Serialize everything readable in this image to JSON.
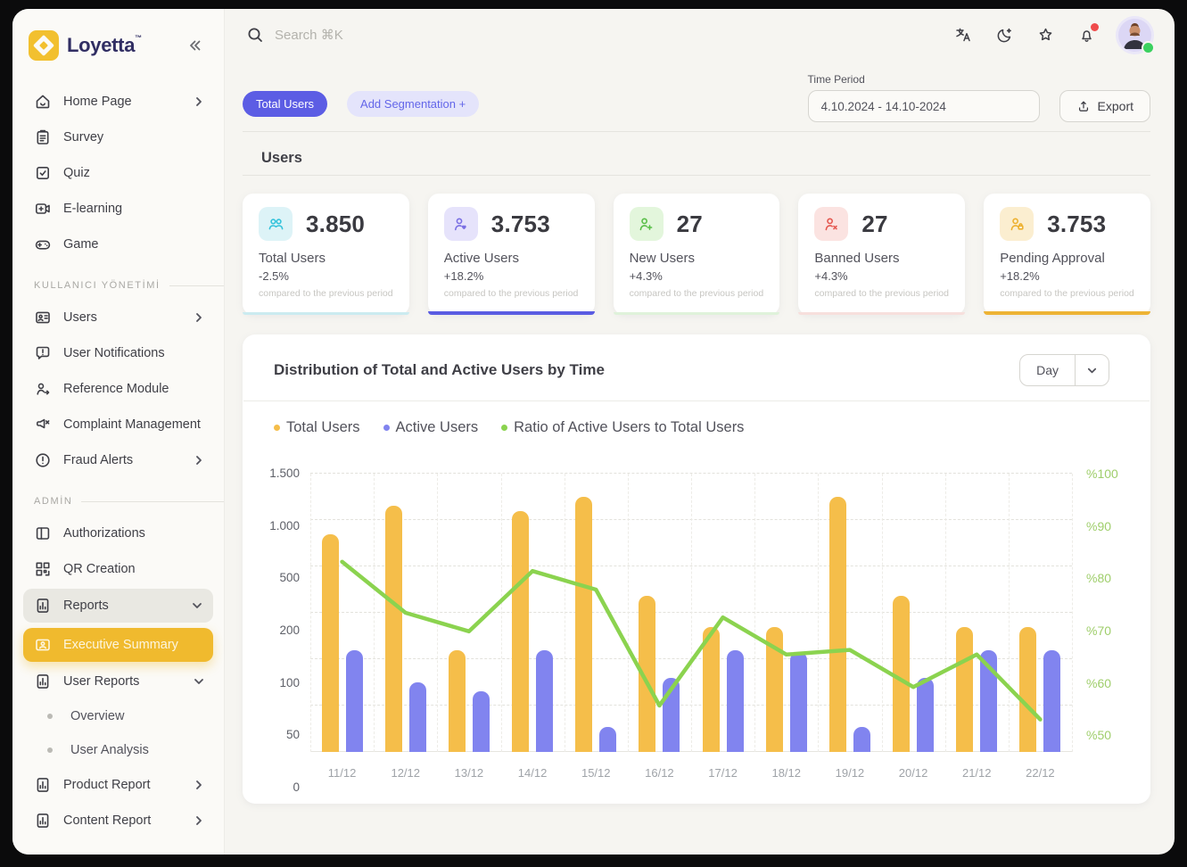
{
  "brand": {
    "name": "Loyetta",
    "tm": "™"
  },
  "sidebar": {
    "sections": [
      {
        "label": null,
        "items": [
          {
            "icon": "home-icon",
            "label": "Home Page",
            "chevron": "right"
          },
          {
            "icon": "survey-icon",
            "label": "Survey"
          },
          {
            "icon": "quiz-icon",
            "label": "Quiz"
          },
          {
            "icon": "elearning-icon",
            "label": "E-learning"
          },
          {
            "icon": "game-icon",
            "label": "Game"
          }
        ]
      },
      {
        "label": "KULLANICI YÖNETİMİ",
        "items": [
          {
            "icon": "users-icon",
            "label": "Users",
            "chevron": "right"
          },
          {
            "icon": "user-notifications-icon",
            "label": "User Notifications"
          },
          {
            "icon": "reference-module-icon",
            "label": "Reference Module"
          },
          {
            "icon": "complaint-icon",
            "label": "Complaint Management"
          },
          {
            "icon": "fraud-alerts-icon",
            "label": "Fraud Alerts",
            "chevron": "right"
          }
        ]
      },
      {
        "label": "ADMİN",
        "items": [
          {
            "icon": "authorizations-icon",
            "label": "Authorizations"
          },
          {
            "icon": "qr-icon",
            "label": "QR Creation"
          },
          {
            "icon": "report-icon",
            "label": "Reports",
            "chevron": "down",
            "state": "group"
          },
          {
            "icon": "executive-summary-icon",
            "label": "Executive Summary",
            "state": "active"
          },
          {
            "icon": "report-icon",
            "label": "User Reports",
            "chevron": "down"
          },
          {
            "label": "Overview",
            "sub": true
          },
          {
            "label": "User Analysis",
            "sub": true
          },
          {
            "icon": "report-icon",
            "label": "Product Report",
            "chevron": "right"
          },
          {
            "icon": "report-icon",
            "label": "Content Report",
            "chevron": "right"
          }
        ]
      }
    ]
  },
  "topbar": {
    "search_placeholder": "Search ⌘K",
    "icons": [
      "translate-icon",
      "dark-mode-icon",
      "favorites-icon",
      "notifications-icon",
      "avatar"
    ],
    "notification_badge": true,
    "avatar_status": "online"
  },
  "filters": {
    "primary_pill": "Total Users",
    "secondary_pill": "Add Segmentation +",
    "time_period_label": "Time Period",
    "time_period_value": "4.10.2024 - 14.10-2024",
    "export_label": "Export"
  },
  "section": {
    "title": "Users"
  },
  "cards": [
    {
      "icon": "users-group-icon",
      "icon_bg": "#DDF3F7",
      "icon_color": "#35C3DB",
      "value": "3.850",
      "label": "Total Users",
      "delta": "-2.5%",
      "note": "compared to the previous period",
      "accent": "#CBEBF0",
      "thick": false
    },
    {
      "icon": "user-heart-icon",
      "icon_bg": "#E6E3FB",
      "icon_color": "#7A6FE3",
      "value": "3.753",
      "label": "Active Users",
      "delta": "+18.2%",
      "note": "compared to the previous period",
      "accent": "#5A5CE2",
      "thick": true
    },
    {
      "icon": "user-plus-icon",
      "icon_bg": "#E3F6DC",
      "icon_color": "#58BE47",
      "value": "27",
      "label": "New Users",
      "delta": "+4.3%",
      "note": "compared to the previous period",
      "accent": "#DFF2DA",
      "thick": false
    },
    {
      "icon": "user-x-icon",
      "icon_bg": "#FBE3E1",
      "icon_color": "#E4564E",
      "value": "27",
      "label": "Banned Users",
      "delta": "+4.3%",
      "note": "compared to the previous period",
      "accent": "#F7DFDC",
      "thick": false
    },
    {
      "icon": "user-lock-icon",
      "icon_bg": "#FBEED0",
      "icon_color": "#EDB02E",
      "value": "3.753",
      "label": "Pending Approval",
      "delta": "+18.2%",
      "note": "compared to the previous period",
      "accent": "#EDB335",
      "thick": true
    }
  ],
  "chart": {
    "title": "Distribution of Total and Active Users by Time",
    "interval": "Day"
  },
  "chart_data": {
    "type": "bar",
    "title": "Distribution of Total and Active Users by Time",
    "categories": [
      "11/12",
      "12/12",
      "13/12",
      "14/12",
      "15/12",
      "16/12",
      "17/12",
      "18/12",
      "19/12",
      "20/12",
      "21/12",
      "22/12"
    ],
    "series": [
      {
        "name": "Total Users",
        "type": "bar",
        "axis": "left",
        "color": "#F5BE4A",
        "values": [
          850,
          1150,
          120,
          1100,
          1250,
          310,
          170,
          170,
          1250,
          310,
          170,
          170
        ]
      },
      {
        "name": "Active Users",
        "type": "bar",
        "axis": "left",
        "color": "#8184EF",
        "values": [
          120,
          75,
          65,
          120,
          27,
          80,
          120,
          115,
          27,
          80,
          120,
          120
        ]
      },
      {
        "name": "Ratio of Active Users to Total Users",
        "type": "line",
        "axis": "right",
        "color": "#8BD34F",
        "values": [
          81,
          70,
          66,
          79,
          75,
          50,
          69,
          61,
          62,
          54,
          61,
          47
        ]
      }
    ],
    "left_axis": {
      "ticks": [
        0,
        50,
        100,
        200,
        500,
        1000,
        1500
      ],
      "tick_labels": [
        "0",
        "50",
        "100",
        "200",
        "500",
        "1.000",
        "1.500"
      ],
      "scale": "non-linear, evenly spaced ticks"
    },
    "right_axis": {
      "ticks": [
        50,
        60,
        70,
        80,
        90,
        100
      ],
      "tick_labels": [
        "%50",
        "%60",
        "%70",
        "%80",
        "%90",
        "%100"
      ]
    },
    "grid": "dashed horizontal and vertical",
    "legend_position": "top-left"
  }
}
